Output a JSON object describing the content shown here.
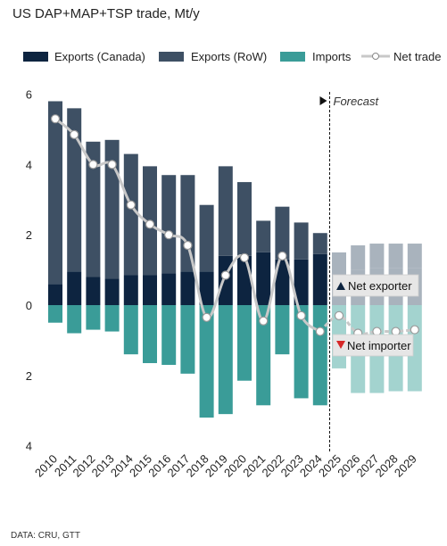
{
  "chart_data": {
    "type": "bar",
    "title": "US DAP+MAP+TSP trade, Mt/y",
    "categories": [
      "2010",
      "2011",
      "2012",
      "2013",
      "2014",
      "2015",
      "2016",
      "2017",
      "2018",
      "2019",
      "2020",
      "2021",
      "2022",
      "2023",
      "2024",
      "2025",
      "2026",
      "2027",
      "2028",
      "2029"
    ],
    "series": [
      {
        "name": "Exports (Canada)",
        "color": "#0d2440",
        "values": [
          0.6,
          0.95,
          0.8,
          0.75,
          0.85,
          0.85,
          0.9,
          0.95,
          0.95,
          1.4,
          1.4,
          1.5,
          1.3,
          1.3,
          1.45,
          0.85,
          1.0,
          1.05,
          1.05,
          1.05
        ]
      },
      {
        "name": "Exports (RoW)",
        "color": "#3e5064",
        "values": [
          5.2,
          4.65,
          3.85,
          3.95,
          3.45,
          3.1,
          2.8,
          2.75,
          1.9,
          2.55,
          2.1,
          0.9,
          1.5,
          1.05,
          0.6,
          0.65,
          0.7,
          0.7,
          0.7,
          0.7
        ]
      },
      {
        "name": "Imports",
        "color": "#3a9c98",
        "values": [
          -0.5,
          -0.8,
          -0.7,
          -0.75,
          -1.4,
          -1.65,
          -1.7,
          -1.95,
          -3.2,
          -3.1,
          -2.15,
          -2.85,
          -1.4,
          -2.65,
          -2.85,
          -1.8,
          -2.5,
          -2.5,
          -2.45,
          -2.45
        ]
      },
      {
        "name": "Net trade",
        "color": "#c8c8c8",
        "values": [
          5.3,
          4.85,
          4.0,
          4.0,
          2.85,
          2.3,
          2.0,
          1.7,
          -0.35,
          0.85,
          1.35,
          -0.45,
          1.4,
          -0.3,
          -0.75,
          -0.3,
          -0.8,
          -0.75,
          -0.75,
          -0.7
        ]
      }
    ],
    "forecast_from": "2025",
    "ylim": [
      -4,
      6
    ],
    "yticks": [
      -4,
      -2,
      0,
      2,
      4,
      6
    ],
    "ytick_labels": [
      "4",
      "2",
      "0",
      "2",
      "4",
      "6"
    ],
    "grid": false,
    "legend_position": "top",
    "annotations": {
      "forecast": "Forecast",
      "net_exporter": "Net exporter",
      "net_importer": "Net importer"
    },
    "forecast_colors": {
      "exports_canada": "#a9b3bd",
      "exports_row": "#a9b3bd",
      "imports": "#a3d3cf"
    }
  },
  "source": "DATA: CRU, GTT"
}
